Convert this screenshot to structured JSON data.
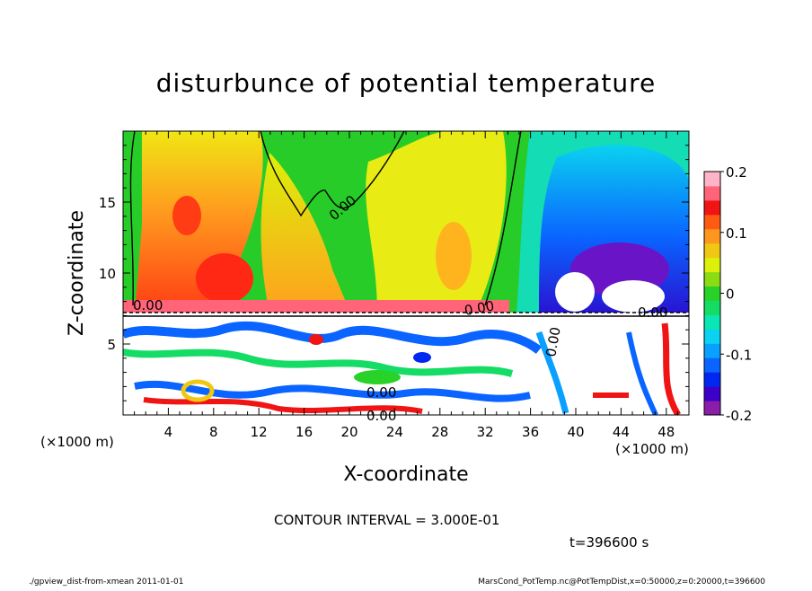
{
  "chart_data": {
    "type": "heatmap",
    "title": "disturbunce of potential temperature",
    "xlabel": "X-coordinate",
    "ylabel": "Z-coordinate",
    "x_unit": "(×1000 m)",
    "y_unit": "(×1000 m)",
    "xlim": [
      0,
      50
    ],
    "ylim": [
      0,
      20
    ],
    "x_ticks": [
      4,
      8,
      12,
      16,
      20,
      24,
      28,
      32,
      36,
      40,
      44,
      48
    ],
    "y_ticks": [
      5,
      10,
      15
    ],
    "colorbar": {
      "ticks": [
        "0.2",
        "0.1",
        "0",
        "-0.1",
        "-0.2"
      ],
      "range": [
        -0.2,
        0.2
      ],
      "colors": [
        "#8a1ea8",
        "#3c00c8",
        "#0028f0",
        "#0a64ff",
        "#0aa0ff",
        "#0ad2f0",
        "#0ae6b4",
        "#14dc64",
        "#28d228",
        "#8cdc14",
        "#dcf00a",
        "#f0c814",
        "#ff961e",
        "#ff5a14",
        "#f01414",
        "#ff6478",
        "#ffb4c8"
      ]
    },
    "contour_labels": [
      "0.00",
      "0.00",
      "0.00",
      "0.00",
      "0.00",
      "0.00",
      "0.00"
    ],
    "contour_interval_text": "CONTOUR INTERVAL = 3.000E-01",
    "time_text": "t=396600 s",
    "footer_left": "./gpview_dist-from-xmean   2011-01-01",
    "footer_right": "MarsCond_PotTemp.nc@PotTempDist,x=0:50000,z=0:20000,t=396600"
  }
}
